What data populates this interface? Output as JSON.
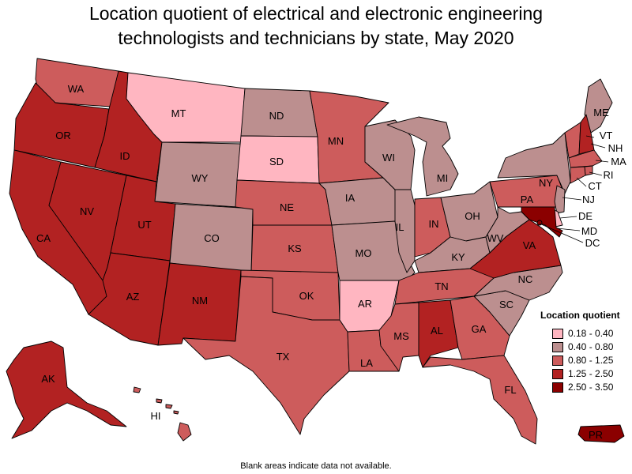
{
  "title_lines": [
    "Location quotient of electrical and electronic engineering",
    "technologists and technicians by state, May 2020"
  ],
  "legend": {
    "title": "Location quotient",
    "items": [
      {
        "label": "0.18 - 0.40",
        "color": "#ffb6c1"
      },
      {
        "label": "0.40 - 0.80",
        "color": "#bc8f8f"
      },
      {
        "label": "0.80 - 1.25",
        "color": "#cd5c5c"
      },
      {
        "label": "1.25 - 2.50",
        "color": "#b22222"
      },
      {
        "label": "2.50 - 3.50",
        "color": "#8b0000"
      }
    ]
  },
  "footnote": "Blank areas indicate data not available.",
  "states": {
    "WA": {
      "label": "WA",
      "class": "0.80 - 1.25"
    },
    "OR": {
      "label": "OR",
      "class": "1.25 - 2.50"
    },
    "CA": {
      "label": "CA",
      "class": "1.25 - 2.50"
    },
    "ID": {
      "label": "ID",
      "class": "1.25 - 2.50"
    },
    "NV": {
      "label": "NV",
      "class": "1.25 - 2.50"
    },
    "MT": {
      "label": "MT",
      "class": "0.18 - 0.40"
    },
    "WY": {
      "label": "WY",
      "class": "0.40 - 0.80"
    },
    "UT": {
      "label": "UT",
      "class": "1.25 - 2.50"
    },
    "AZ": {
      "label": "AZ",
      "class": "1.25 - 2.50"
    },
    "CO": {
      "label": "CO",
      "class": "0.40 - 0.80"
    },
    "NM": {
      "label": "NM",
      "class": "1.25 - 2.50"
    },
    "ND": {
      "label": "ND",
      "class": "0.40 - 0.80"
    },
    "SD": {
      "label": "SD",
      "class": "0.18 - 0.40"
    },
    "NE": {
      "label": "NE",
      "class": "0.80 - 1.25"
    },
    "KS": {
      "label": "KS",
      "class": "0.80 - 1.25"
    },
    "OK": {
      "label": "OK",
      "class": "0.80 - 1.25"
    },
    "TX": {
      "label": "TX",
      "class": "0.80 - 1.25"
    },
    "MN": {
      "label": "MN",
      "class": "0.80 - 1.25"
    },
    "IA": {
      "label": "IA",
      "class": "0.40 - 0.80"
    },
    "MO": {
      "label": "MO",
      "class": "0.40 - 0.80"
    },
    "AR": {
      "label": "AR",
      "class": "0.18 - 0.40"
    },
    "LA": {
      "label": "LA",
      "class": "0.80 - 1.25"
    },
    "WI": {
      "label": "WI",
      "class": "0.40 - 0.80"
    },
    "IL": {
      "label": "IL",
      "class": "0.40 - 0.80"
    },
    "MI": {
      "label": "MI",
      "class": "0.40 - 0.80"
    },
    "IN": {
      "label": "IN",
      "class": "0.80 - 1.25"
    },
    "OH": {
      "label": "OH",
      "class": "0.40 - 0.80"
    },
    "KY": {
      "label": "KY",
      "class": "0.40 - 0.80"
    },
    "TN": {
      "label": "TN",
      "class": "0.80 - 1.25"
    },
    "MS": {
      "label": "MS",
      "class": "0.80 - 1.25"
    },
    "AL": {
      "label": "AL",
      "class": "1.25 - 2.50"
    },
    "GA": {
      "label": "GA",
      "class": "0.80 - 1.25"
    },
    "FL": {
      "label": "FL",
      "class": "0.80 - 1.25"
    },
    "SC": {
      "label": "SC",
      "class": "0.40 - 0.80"
    },
    "NC": {
      "label": "NC",
      "class": "0.40 - 0.80"
    },
    "VA": {
      "label": "VA",
      "class": "1.25 - 2.50"
    },
    "WV": {
      "label": "WV",
      "class": "0.40 - 0.80"
    },
    "PA": {
      "label": "PA",
      "class": "0.80 - 1.25"
    },
    "NY": {
      "label": "NY",
      "class": "0.40 - 0.80"
    },
    "ME": {
      "label": "ME",
      "class": "0.40 - 0.80"
    },
    "VT": {
      "label": "VT",
      "class": "0.80 - 1.25"
    },
    "NH": {
      "label": "NH",
      "class": "1.25 - 2.50"
    },
    "MA": {
      "label": "MA",
      "class": "0.80 - 1.25"
    },
    "RI": {
      "label": "RI",
      "class": "0.80 - 1.25"
    },
    "CT": {
      "label": "CT",
      "class": "0.80 - 1.25"
    },
    "NJ": {
      "label": "NJ",
      "class": "0.40 - 0.80"
    },
    "DE": {
      "label": "DE",
      "class": "0.18 - 0.40"
    },
    "MD": {
      "label": "MD",
      "class": "2.50 - 3.50"
    },
    "DC": {
      "label": "DC",
      "class": "2.50 - 3.50"
    },
    "AK": {
      "label": "AK",
      "class": "1.25 - 2.50"
    },
    "HI": {
      "label": "HI",
      "class": "0.80 - 1.25"
    },
    "PR": {
      "label": "PR",
      "class": "2.50 - 3.50"
    }
  }
}
